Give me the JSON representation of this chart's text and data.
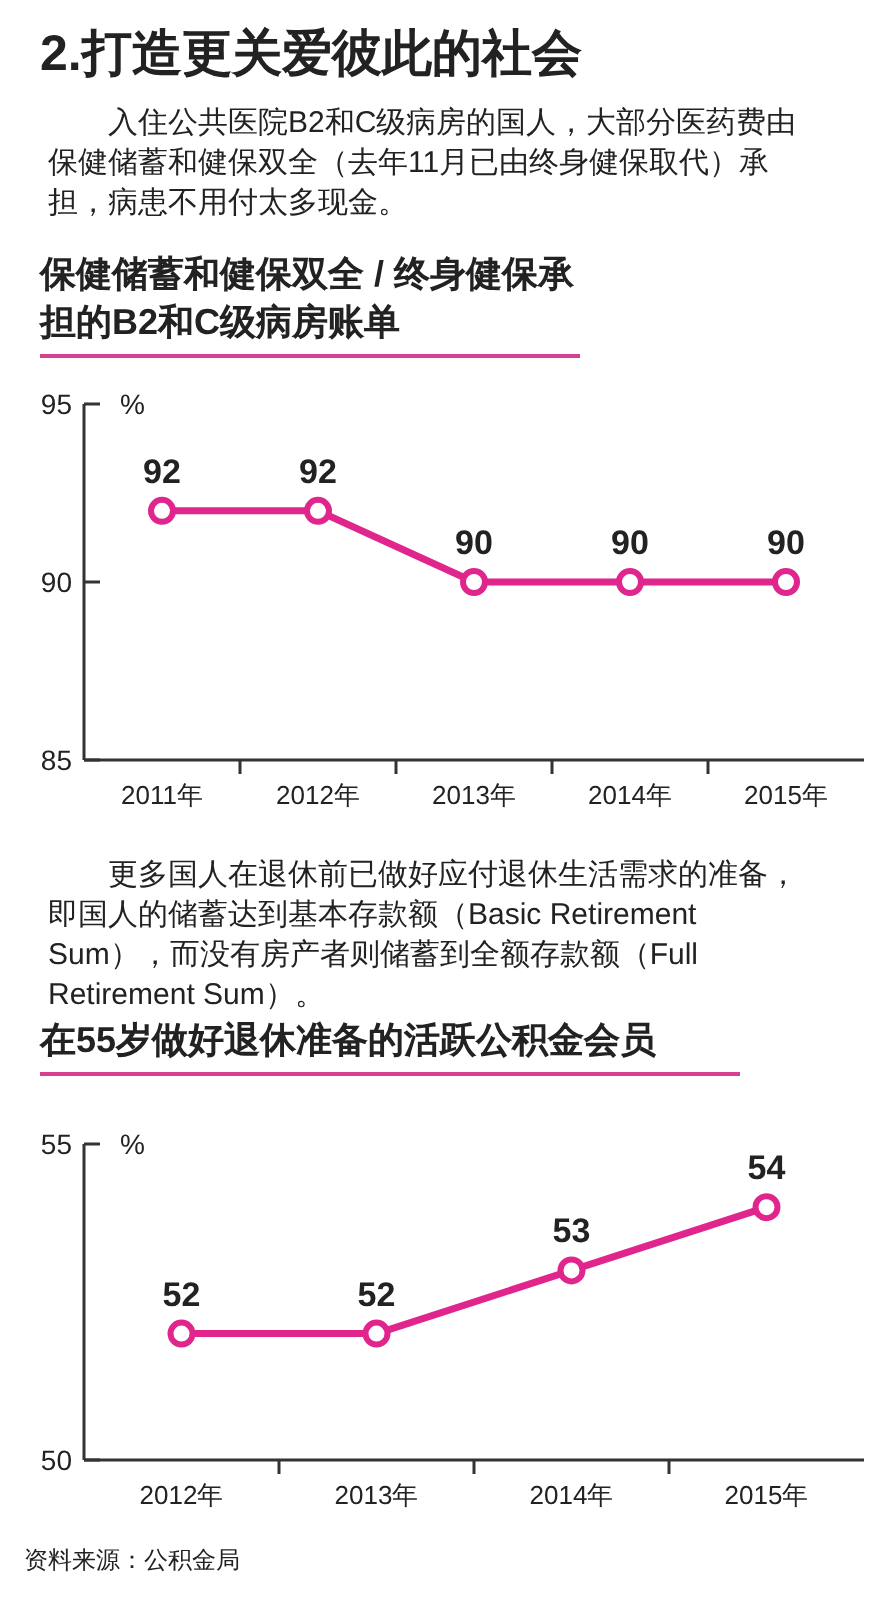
{
  "chart_data": [
    {
      "type": "line",
      "title": "保健储蓄和健保双全 / 终身健保承担的B2和C级病房账单",
      "annotations": [
        "2.打造更关爱彼此的社会",
        "入住公共医院B2和C级病房的国人，大部分医药费由保健储蓄和健保双全（去年11月已由终身健保取代）承担，病患不用付太多现金。"
      ],
      "ylabel": "%",
      "categories": [
        "2011年",
        "2012年",
        "2013年",
        "2014年",
        "2015年"
      ],
      "values": [
        92,
        92,
        90,
        90,
        90
      ],
      "color": "#e0258c",
      "ylim": [
        85,
        95
      ],
      "yticks": [
        85,
        90,
        95
      ],
      "data_labels": true,
      "marker": "circle",
      "line_style": "solid",
      "grid": false
    },
    {
      "type": "line",
      "title": "在55岁做好退休准备的活跃公积金会员",
      "annotations": [
        "更多国人在退休前已做好应付退休生活需求的准备，即国人的储蓄达到基本存款额（Basic Retirement Sum），而没有房产者则储蓄到全额存款额（Full Retirement Sum）。",
        "资料来源：公积金局"
      ],
      "ylabel": "%",
      "categories": [
        "2012年",
        "2013年",
        "2014年",
        "2015年"
      ],
      "values": [
        52,
        52,
        53,
        54
      ],
      "color": "#e0258c",
      "ylim": [
        50,
        55
      ],
      "yticks": [
        50,
        55
      ],
      "data_labels": true,
      "marker": "circle",
      "line_style": "solid",
      "grid": false
    }
  ]
}
